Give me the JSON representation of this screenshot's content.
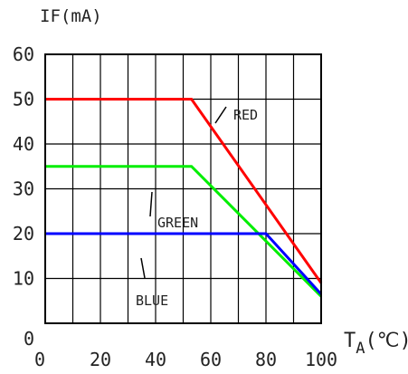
{
  "chart_data": {
    "type": "line",
    "ylabel": "IF(mA)",
    "xlabel_main": "T",
    "xlabel_sub": "A",
    "xlabel_unit": "(℃)",
    "xlim": [
      0,
      100
    ],
    "ylim": [
      0,
      60
    ],
    "x_ticks": [
      "0",
      "20",
      "40",
      "60",
      "80",
      "100"
    ],
    "y_ticks": [
      "0",
      "10",
      "20",
      "30",
      "40",
      "50",
      "60"
    ],
    "grid": true,
    "series": [
      {
        "name": "RED",
        "color": "#ff0000",
        "points": [
          [
            0,
            50
          ],
          [
            53,
            50
          ],
          [
            100,
            9
          ]
        ]
      },
      {
        "name": "GREEN",
        "color": "#00ee00",
        "points": [
          [
            0,
            35
          ],
          [
            53,
            35
          ],
          [
            100,
            6
          ]
        ]
      },
      {
        "name": "BLUE",
        "color": "#0000ff",
        "points": [
          [
            0,
            20
          ],
          [
            80,
            20
          ],
          [
            100,
            6.5
          ]
        ]
      }
    ],
    "annotations": [
      {
        "text": "RED",
        "series": "RED"
      },
      {
        "text": "GREEN",
        "series": "GREEN"
      },
      {
        "text": "BLUE",
        "series": "BLUE"
      }
    ]
  }
}
